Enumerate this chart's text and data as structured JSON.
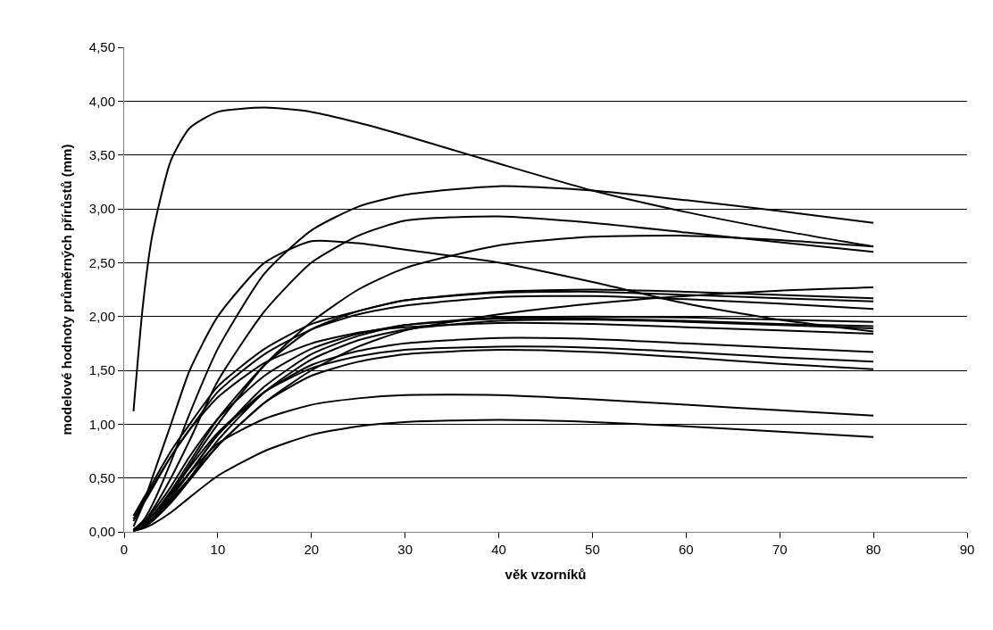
{
  "chart_data": {
    "type": "line",
    "xlabel": "věk vzorníků",
    "ylabel": "modelové hodnoty průměrných přírůstů (mm)",
    "x": [
      1,
      2,
      3,
      5,
      7,
      10,
      15,
      20,
      25,
      30,
      40,
      50,
      60,
      70,
      80
    ],
    "series": [
      {
        "color": "#000000",
        "values": [
          1.12,
          2.1,
          2.75,
          3.45,
          3.75,
          3.9,
          3.94,
          3.9,
          3.8,
          3.68,
          3.42,
          3.17,
          2.97,
          2.8,
          2.65
        ]
      },
      {
        "color": "#000000",
        "values": [
          0.02,
          0.1,
          0.25,
          0.65,
          1.1,
          1.7,
          2.4,
          2.8,
          3.02,
          3.13,
          3.21,
          3.17,
          3.08,
          2.98,
          2.87
        ]
      },
      {
        "color": "#000000",
        "values": [
          0.02,
          0.08,
          0.2,
          0.5,
          0.85,
          1.4,
          2.05,
          2.5,
          2.75,
          2.89,
          2.93,
          2.87,
          2.78,
          2.69,
          2.6
        ]
      },
      {
        "color": "#000000",
        "values": [
          0.05,
          0.25,
          0.5,
          1.0,
          1.5,
          2.0,
          2.5,
          2.7,
          2.68,
          2.62,
          2.5,
          2.32,
          2.12,
          1.97,
          1.86
        ]
      },
      {
        "color": "#000000",
        "values": [
          0.01,
          0.05,
          0.12,
          0.35,
          0.62,
          1.0,
          1.55,
          1.95,
          2.25,
          2.45,
          2.66,
          2.74,
          2.75,
          2.71,
          2.65
        ]
      },
      {
        "color": "#000000",
        "values": [
          0.01,
          0.05,
          0.12,
          0.3,
          0.5,
          0.8,
          1.2,
          1.5,
          1.72,
          1.87,
          2.02,
          2.12,
          2.19,
          2.24,
          2.27
        ]
      },
      {
        "color": "#000000",
        "values": [
          0.15,
          0.3,
          0.45,
          0.75,
          1.0,
          1.35,
          1.7,
          1.93,
          2.05,
          2.15,
          2.23,
          2.25,
          2.23,
          2.2,
          2.17
        ]
      },
      {
        "color": "#000000",
        "values": [
          0.01,
          0.06,
          0.15,
          0.38,
          0.65,
          1.05,
          1.55,
          1.88,
          2.05,
          2.15,
          2.22,
          2.23,
          2.2,
          2.17,
          2.14
        ]
      },
      {
        "color": "#000000",
        "values": [
          0.1,
          0.25,
          0.4,
          0.7,
          0.95,
          1.3,
          1.65,
          1.88,
          2.02,
          2.1,
          2.18,
          2.19,
          2.16,
          2.12,
          2.07
        ]
      },
      {
        "color": "#000000",
        "values": [
          0.01,
          0.05,
          0.12,
          0.32,
          0.55,
          0.9,
          1.35,
          1.65,
          1.82,
          1.92,
          1.99,
          2.0,
          1.99,
          1.97,
          1.95
        ]
      },
      {
        "color": "#000000",
        "values": [
          0.02,
          0.08,
          0.18,
          0.42,
          0.7,
          1.05,
          1.45,
          1.7,
          1.84,
          1.92,
          1.98,
          1.98,
          1.96,
          1.93,
          1.91
        ]
      },
      {
        "color": "#000000",
        "values": [
          0.01,
          0.04,
          0.1,
          0.28,
          0.5,
          0.85,
          1.3,
          1.6,
          1.78,
          1.88,
          1.96,
          1.97,
          1.95,
          1.92,
          1.89
        ]
      },
      {
        "color": "#000000",
        "values": [
          0.12,
          0.28,
          0.42,
          0.7,
          0.95,
          1.25,
          1.57,
          1.75,
          1.85,
          1.9,
          1.94,
          1.93,
          1.9,
          1.87,
          1.84
        ]
      },
      {
        "color": "#000000",
        "values": [
          0.01,
          0.05,
          0.12,
          0.32,
          0.55,
          0.9,
          1.3,
          1.55,
          1.68,
          1.75,
          1.8,
          1.79,
          1.75,
          1.71,
          1.67
        ]
      },
      {
        "color": "#000000",
        "values": [
          0.02,
          0.07,
          0.15,
          0.36,
          0.6,
          0.92,
          1.3,
          1.52,
          1.63,
          1.69,
          1.72,
          1.71,
          1.67,
          1.62,
          1.58
        ]
      },
      {
        "color": "#000000",
        "values": [
          0.01,
          0.04,
          0.1,
          0.27,
          0.48,
          0.8,
          1.2,
          1.45,
          1.58,
          1.65,
          1.69,
          1.67,
          1.62,
          1.56,
          1.51
        ]
      },
      {
        "color": "#000000",
        "values": [
          0.02,
          0.07,
          0.15,
          0.35,
          0.55,
          0.82,
          1.05,
          1.18,
          1.24,
          1.27,
          1.27,
          1.23,
          1.18,
          1.13,
          1.08
        ]
      },
      {
        "color": "#000000",
        "values": [
          0.01,
          0.03,
          0.07,
          0.18,
          0.32,
          0.52,
          0.75,
          0.9,
          0.98,
          1.02,
          1.04,
          1.02,
          0.98,
          0.93,
          0.88
        ]
      }
    ],
    "xlim": [
      0,
      90
    ],
    "xticks": [
      0,
      10,
      20,
      30,
      40,
      50,
      60,
      70,
      80,
      90
    ],
    "ylim": [
      0,
      4.5
    ],
    "yticks": [
      {
        "value": 0,
        "label": "0,00"
      },
      {
        "value": 0.5,
        "label": "0,50"
      },
      {
        "value": 1,
        "label": "1,00"
      },
      {
        "value": 1.5,
        "label": "1,50"
      },
      {
        "value": 2,
        "label": "2,00"
      },
      {
        "value": 2.5,
        "label": "2,50"
      },
      {
        "value": 3,
        "label": "3,00"
      },
      {
        "value": 3.5,
        "label": "3,50"
      },
      {
        "value": 4,
        "label": "4,00"
      },
      {
        "value": 4.5,
        "label": "4,50"
      }
    ],
    "grid": "y",
    "marker": "none",
    "line_style": "solid"
  }
}
